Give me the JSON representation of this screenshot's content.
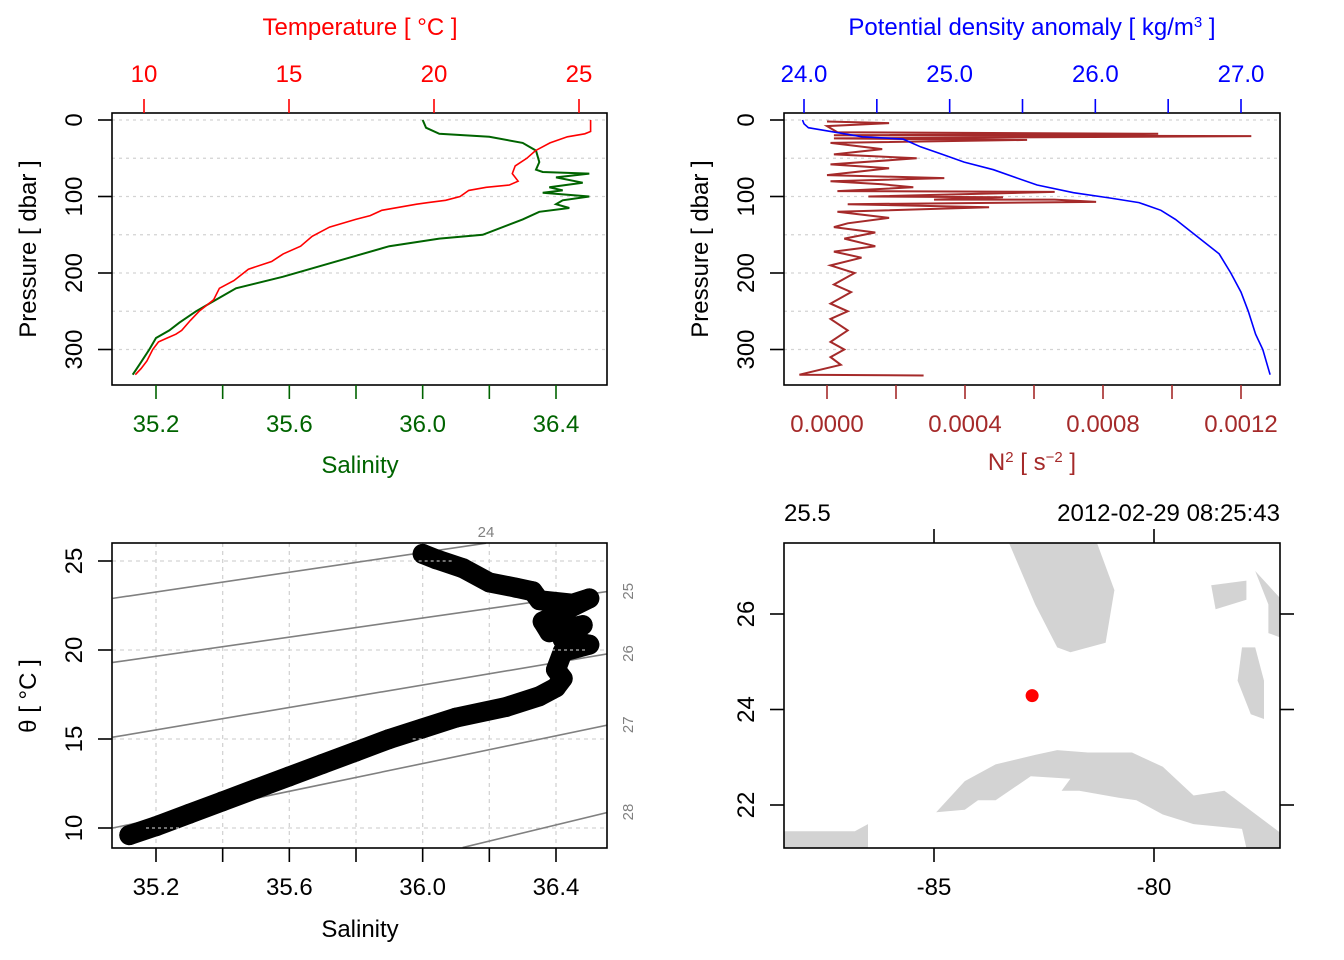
{
  "colors": {
    "temperature": "#ff0000",
    "salinity": "#006400",
    "density": "#0000ff",
    "n2": "#a52a2a",
    "grid": "#d3d3d3",
    "isopycnal": "#808080",
    "land": "#d3d3d3",
    "station": "#ff0000",
    "axis": "#000000"
  },
  "chart_data": [
    {
      "id": "profile-ts",
      "type": "line",
      "title": "",
      "ylabel": "Pressure [ dbar ]",
      "ylim": [
        340,
        0
      ],
      "yticks": [
        0,
        100,
        200,
        300
      ],
      "grid": true,
      "top_axis": {
        "label": "Temperature [ °C ]",
        "range": [
          8.9,
          25.5
        ],
        "ticks": [
          10,
          15,
          20,
          25
        ],
        "tick_labels": [
          "10",
          "15",
          "20",
          "25"
        ]
      },
      "bottom_axis": {
        "label": "Salinity",
        "range": [
          35.07,
          36.56
        ],
        "ticks": [
          35.2,
          35.4,
          35.6,
          35.8,
          36.0,
          36.2,
          36.4
        ],
        "tick_labels": [
          "35.2",
          "",
          "35.6",
          "",
          "36.0",
          "",
          "36.4"
        ]
      },
      "series": [
        {
          "name": "Temperature",
          "axis": "top",
          "x": [
            25.4,
            25.4,
            25.2,
            24.6,
            24.0,
            23.5,
            23.2,
            22.8,
            22.7,
            22.9,
            22.6,
            21.8,
            21.2,
            20.9,
            20.4,
            19.8,
            19.4,
            18.2,
            17.8,
            17.3,
            16.4,
            15.8,
            15.4,
            14.8,
            14.4,
            13.6,
            13.1,
            12.6,
            12.4,
            11.9,
            11.6,
            11.3,
            11.1,
            10.8,
            10.5,
            10.3,
            10.1,
            9.9,
            9.7
          ],
          "y": [
            0,
            15,
            18,
            22,
            30,
            40,
            50,
            60,
            70,
            80,
            85,
            88,
            92,
            100,
            105,
            108,
            110,
            118,
            125,
            130,
            140,
            152,
            165,
            175,
            185,
            195,
            210,
            220,
            235,
            250,
            262,
            275,
            280,
            285,
            290,
            300,
            315,
            325,
            333
          ]
        },
        {
          "name": "Salinity",
          "axis": "bottom",
          "x": [
            36.0,
            36.01,
            36.05,
            36.2,
            36.3,
            36.34,
            36.35,
            36.34,
            36.36,
            36.5,
            36.4,
            36.48,
            36.38,
            36.42,
            36.36,
            36.5,
            36.42,
            36.4,
            36.44,
            36.35,
            36.3,
            36.18,
            36.05,
            35.9,
            35.78,
            35.66,
            35.58,
            35.44,
            35.38,
            35.32,
            35.27,
            35.24,
            35.2,
            35.18,
            35.15,
            35.13
          ],
          "y": [
            0,
            10,
            18,
            22,
            30,
            40,
            55,
            65,
            68,
            70,
            75,
            82,
            88,
            92,
            95,
            100,
            105,
            110,
            115,
            120,
            130,
            150,
            155,
            165,
            180,
            195,
            205,
            220,
            235,
            250,
            265,
            275,
            285,
            300,
            320,
            333
          ]
        }
      ]
    },
    {
      "id": "profile-density-n2",
      "type": "line",
      "title": "",
      "ylabel": "Pressure [ dbar ]",
      "ylim": [
        340,
        0
      ],
      "yticks": [
        0,
        100,
        200,
        300
      ],
      "grid": true,
      "top_axis": {
        "label": "Potential density anomaly [ kg/m³ ]",
        "range": [
          23.86,
          27.27
        ],
        "ticks": [
          24.0,
          24.5,
          25.0,
          25.5,
          26.0,
          26.5,
          27.0
        ],
        "tick_labels": [
          "24.0",
          "",
          "25.0",
          "",
          "26.0",
          "",
          "27.0"
        ]
      },
      "bottom_axis": {
        "label": "N² [ s⁻² ]",
        "range": [
          -6.8e-05,
          0.001278
        ],
        "ticks": [
          0.0,
          0.0002,
          0.0004,
          0.0006,
          0.0008,
          0.001,
          0.0012
        ],
        "tick_labels": [
          "0.0000",
          "",
          "0.0004",
          "",
          "0.0008",
          "",
          "0.0012"
        ]
      },
      "series": [
        {
          "name": "Potential density anomaly",
          "axis": "top",
          "x": [
            23.99,
            24.0,
            24.03,
            24.4,
            24.68,
            24.8,
            24.95,
            25.1,
            25.3,
            25.45,
            25.6,
            25.85,
            26.1,
            26.3,
            26.45,
            26.55,
            26.65,
            26.75,
            26.85,
            26.93,
            27.0,
            27.05,
            27.1,
            27.15,
            27.2
          ],
          "y": [
            0,
            5,
            10,
            22,
            25,
            35,
            45,
            55,
            65,
            75,
            85,
            95,
            102,
            108,
            118,
            130,
            145,
            160,
            175,
            200,
            225,
            250,
            280,
            300,
            333
          ]
        },
        {
          "name": "N2",
          "axis": "bottom",
          "x": [
            0.0,
            0.00018,
            0.0,
            3e-05,
            0.00096,
            2e-05,
            0.00123,
            2e-05,
            0.00058,
            1e-05,
            0.00016,
            2e-05,
            0.00026,
            1e-05,
            0.00018,
            0.0,
            0.00034,
            1e-05,
            0.00016,
            0.00025,
            3e-05,
            0.00066,
            0.00012,
            0.00051,
            0.00031,
            0.00066,
            0.00078,
            6e-05,
            0.00047,
            3e-05,
            0.00018,
            6e-05,
            2e-05,
            0.00014,
            5e-05,
            0.00014,
            2e-05,
            0.0001,
            1e-05,
            8e-05,
            2e-05,
            7e-05,
            1e-05,
            6e-05,
            1e-05,
            6e-05,
            1e-05,
            5e-05,
            1e-05,
            4e-05,
            -8e-05,
            0.00028
          ],
          "y": [
            2,
            4,
            8,
            16,
            18,
            20,
            21,
            24,
            26,
            30,
            38,
            45,
            50,
            58,
            63,
            72,
            76,
            80,
            84,
            88,
            93,
            94,
            100,
            101,
            104,
            104,
            107,
            110,
            114,
            120,
            128,
            135,
            140,
            147,
            155,
            165,
            172,
            180,
            190,
            200,
            215,
            225,
            240,
            250,
            260,
            275,
            290,
            300,
            310,
            320,
            333,
            334
          ]
        }
      ]
    },
    {
      "id": "ts-diagram",
      "type": "scatter",
      "title": "",
      "xlabel": "Salinity",
      "ylabel": "θ [ °C ]",
      "xlim": [
        35.07,
        36.56
      ],
      "ylim": [
        8.9,
        26.0
      ],
      "xticks": [
        35.2,
        35.4,
        35.6,
        35.8,
        36.0,
        36.2,
        36.4
      ],
      "xtick_labels": [
        "35.2",
        "",
        "35.6",
        "",
        "36.0",
        "",
        "36.4"
      ],
      "yticks": [
        10,
        15,
        20,
        25
      ],
      "ytick_labels": [
        "10",
        "15",
        "20",
        "25"
      ],
      "grid": true,
      "points": {
        "salinity": [
          36.0,
          36.04,
          36.12,
          36.2,
          36.28,
          36.33,
          36.35,
          36.45,
          36.5,
          36.36,
          36.38,
          36.48,
          36.42,
          36.5,
          36.42,
          36.4,
          36.42,
          36.4,
          36.35,
          36.25,
          36.1,
          36.0,
          35.9,
          35.8,
          35.7,
          35.6,
          35.5,
          35.4,
          35.3,
          35.2,
          35.12
        ],
        "theta": [
          25.4,
          25.1,
          24.6,
          23.8,
          23.5,
          23.3,
          22.8,
          22.6,
          22.9,
          21.6,
          21.0,
          21.4,
          20.6,
          20.3,
          19.9,
          18.9,
          18.4,
          17.9,
          17.4,
          16.8,
          16.2,
          15.6,
          15.0,
          14.3,
          13.6,
          12.9,
          12.2,
          11.5,
          10.8,
          10.1,
          9.6
        ]
      },
      "isopycnals": [
        {
          "label": "24",
          "s": [
            35.07,
            36.19
          ],
          "theta": [
            22.9,
            26.0
          ]
        },
        {
          "label": "25",
          "s": [
            35.07,
            36.56
          ],
          "theta": [
            19.3,
            23.3
          ]
        },
        {
          "label": "26",
          "s": [
            35.07,
            36.56
          ],
          "theta": [
            15.1,
            19.8
          ]
        },
        {
          "label": "27",
          "s": [
            35.07,
            36.56
          ],
          "theta": [
            10.0,
            15.8
          ]
        },
        {
          "label": "28",
          "s": [
            36.12,
            36.56
          ],
          "theta": [
            8.9,
            10.9
          ]
        }
      ]
    },
    {
      "id": "station-map",
      "type": "scatter",
      "title": "",
      "top_left_label": "25.5",
      "top_right_label": "2012-02-29 08:25:43",
      "xlim": [
        -88.4,
        -77.1
      ],
      "ylim": [
        21.1,
        27.5
      ],
      "xticks": [
        -85,
        -80
      ],
      "xtick_labels": [
        "-85",
        "-80"
      ],
      "yticks": [
        22,
        24,
        26
      ],
      "ytick_labels": [
        "22",
        "24",
        "26"
      ],
      "station": {
        "lon": -82.77,
        "lat": 24.29
      },
      "land": [
        {
          "name": "florida",
          "lon": [
            -82.5,
            -81.3,
            -80.9,
            -81.1,
            -81.9,
            -82.2,
            -82.7,
            -83.3,
            -82.5
          ],
          "lat": [
            27.5,
            27.5,
            26.5,
            25.4,
            25.2,
            25.3,
            26.2,
            27.5,
            27.5
          ]
        },
        {
          "name": "bahamas-north",
          "lon": [
            -78.7,
            -77.9,
            -77.9,
            -78.6,
            -78.7
          ],
          "lat": [
            26.6,
            26.7,
            26.3,
            26.1,
            26.6
          ]
        },
        {
          "name": "bahamas-east",
          "lon": [
            -77.7,
            -77.1,
            -77.1,
            -77.4,
            -77.4,
            -77.7
          ],
          "lat": [
            26.9,
            26.3,
            25.5,
            25.6,
            26.2,
            26.9
          ]
        },
        {
          "name": "andros",
          "lon": [
            -78.0,
            -77.7,
            -77.5,
            -77.5,
            -77.8,
            -78.1,
            -78.0
          ],
          "lat": [
            25.3,
            25.3,
            24.6,
            23.8,
            23.9,
            24.6,
            25.3
          ]
        },
        {
          "name": "cuba",
          "lon": [
            -84.95,
            -84.6,
            -84.3,
            -83.6,
            -82.7,
            -82.2,
            -81.5,
            -80.5,
            -79.8,
            -79.1,
            -78.4,
            -77.1,
            -77.1,
            -77.9,
            -78.0,
            -79.1,
            -79.8,
            -80.4,
            -80.8,
            -81.7,
            -82.1,
            -81.9,
            -82.8,
            -83.6,
            -84.0,
            -84.3,
            -84.95
          ],
          "lat": [
            21.85,
            22.2,
            22.5,
            22.85,
            23.05,
            23.15,
            23.1,
            23.1,
            22.8,
            22.2,
            22.3,
            21.4,
            21.1,
            21.1,
            21.5,
            21.6,
            21.8,
            22.1,
            22.15,
            22.3,
            22.3,
            22.55,
            22.6,
            22.1,
            22.1,
            21.9,
            21.85
          ]
        },
        {
          "name": "yucatan",
          "lon": [
            -88.4,
            -86.8,
            -86.5,
            -86.5,
            -88.4
          ],
          "lat": [
            21.45,
            21.45,
            21.6,
            21.1,
            21.1
          ]
        }
      ]
    }
  ]
}
